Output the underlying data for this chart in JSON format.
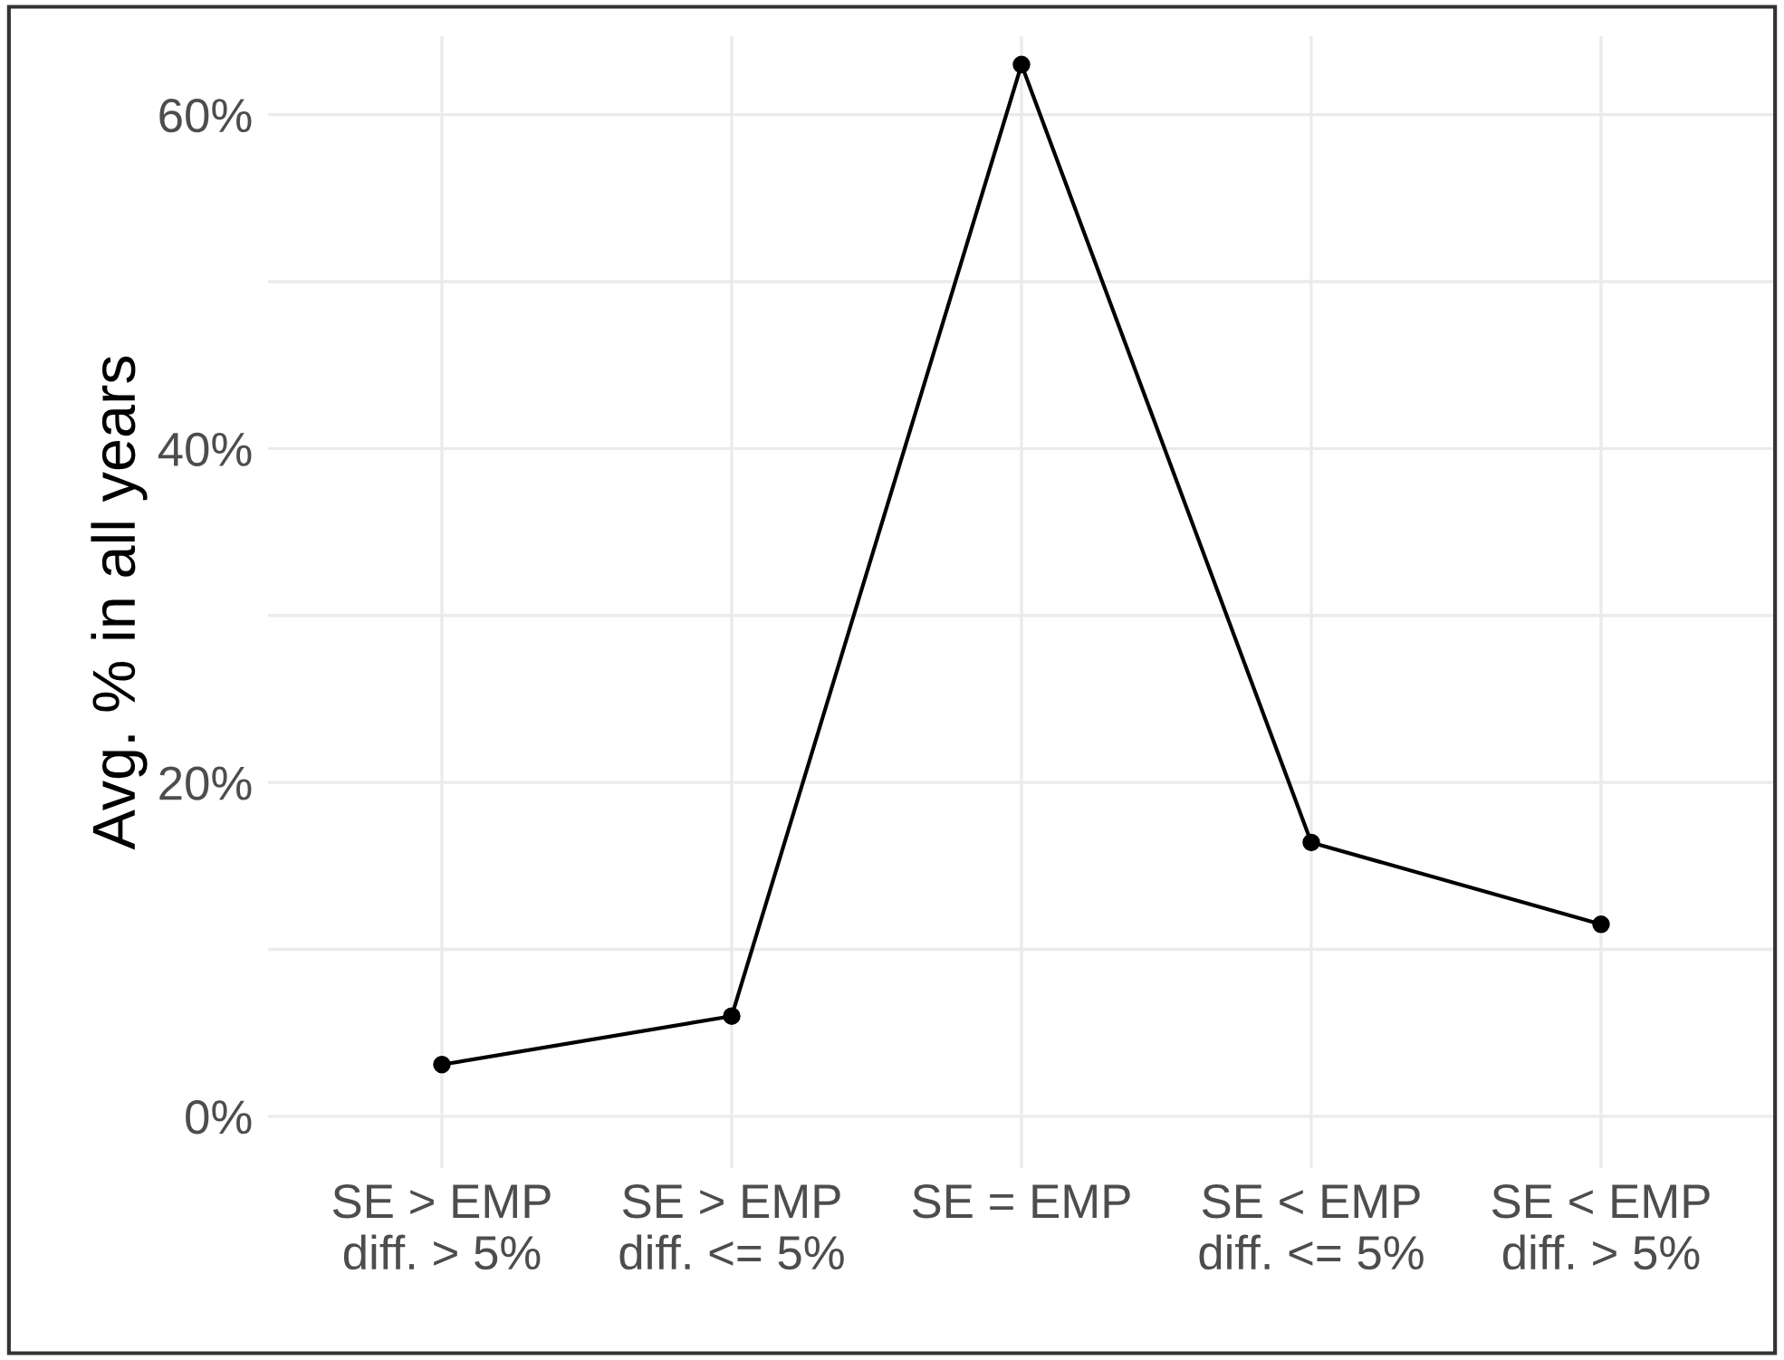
{
  "chart_data": {
    "type": "line",
    "ylabel": "Avg. % in all years",
    "categories": [
      "SE > EMP\ndiff. > 5%",
      "SE > EMP\ndiff. <= 5%",
      "SE = EMP",
      "SE < EMP\ndiff. <= 5%",
      "SE < EMP\ndiff. > 5%"
    ],
    "series": [
      {
        "color": "#000000",
        "values": [
          3.1,
          6.0,
          63.0,
          16.4,
          11.5
        ]
      }
    ],
    "ylim": [
      -3.1,
      64.7
    ],
    "yticks": [
      {
        "value": 0,
        "label": "0%"
      },
      {
        "value": 10,
        "label": null
      },
      {
        "value": 20,
        "label": "20%"
      },
      {
        "value": 30,
        "label": null
      },
      {
        "value": 40,
        "label": "40%"
      },
      {
        "value": 50,
        "label": null
      },
      {
        "value": 60,
        "label": "60%"
      }
    ],
    "grid": true,
    "marker": "circle",
    "line_style": "solid",
    "legend": false
  }
}
